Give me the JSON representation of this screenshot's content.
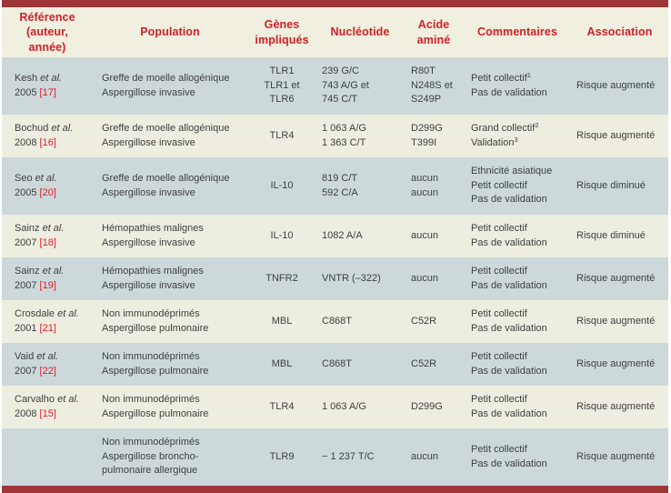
{
  "colors": {
    "bar": "#9d3539",
    "header_bg": "#f1efe0",
    "row_light": "#edeee0",
    "row_dark": "#ccd8da",
    "header_text": "#d22027",
    "ref_red": "#e41a2c",
    "body_text": "#404040"
  },
  "table": {
    "columns": [
      {
        "id": "reference",
        "label": "Référence\n(auteur,\nannée)"
      },
      {
        "id": "population",
        "label": "Population"
      },
      {
        "id": "genes",
        "label": "Gènes\nimpliqués"
      },
      {
        "id": "nucleotide",
        "label": "Nucléotide"
      },
      {
        "id": "amino_acid",
        "label": "Acide\naminé"
      },
      {
        "id": "comments",
        "label": "Commentaires"
      },
      {
        "id": "association",
        "label": "Association"
      }
    ],
    "rows": [
      {
        "reference": {
          "author": "Kesh",
          "etal": "et al.",
          "year": "2005",
          "citation": "[17]"
        },
        "population": [
          "Greffe de moelle allogénique",
          "Aspergillose invasive"
        ],
        "genes": [
          "TLR1",
          "TLR1 et",
          "TLR6"
        ],
        "nucleotide": [
          "239 G/C",
          "743 A/G et",
          "745 C/T"
        ],
        "amino_acid": [
          "R80T",
          "N248S et",
          "S249P"
        ],
        "comments": [
          {
            "text": "Petit collectif",
            "sup": "1"
          },
          {
            "text": "Pas de validation"
          }
        ],
        "association": "Risque augmenté"
      },
      {
        "reference": {
          "author": "Bochud",
          "etal": "et al.",
          "year": "2008",
          "citation": "[16]"
        },
        "population": [
          "Greffe de moelle allogénique",
          "Aspergillose invasive"
        ],
        "genes": [
          "TLR4"
        ],
        "nucleotide": [
          "1 063 A/G",
          "1 363 C/T"
        ],
        "amino_acid": [
          "D299G",
          "T399I"
        ],
        "comments": [
          {
            "text": "Grand collectif",
            "sup": "2"
          },
          {
            "text": "Validation",
            "sup": "3"
          }
        ],
        "association": "Risque augmenté"
      },
      {
        "reference": {
          "author": "Seo",
          "etal": "et al.",
          "year": "2005",
          "citation": "[20]"
        },
        "population": [
          "Greffe de moelle allogénique",
          "Aspergillose invasive"
        ],
        "genes": [
          "IL-10"
        ],
        "nucleotide": [
          "819 C/T",
          "592 C/A"
        ],
        "amino_acid": [
          "aucun",
          "aucun"
        ],
        "comments": [
          {
            "text": "Ethnicité asiatique"
          },
          {
            "text": "Petit collectif"
          },
          {
            "text": "Pas de validation"
          }
        ],
        "association": "Risque diminué"
      },
      {
        "reference": {
          "author": "Sainz",
          "etal": "et al.",
          "year": "2007",
          "citation": "[18]"
        },
        "population": [
          "Hémopathies malignes",
          "Aspergillose invasive"
        ],
        "genes": [
          "IL-10"
        ],
        "nucleotide": [
          "1082 A/A"
        ],
        "amino_acid": [
          "aucun"
        ],
        "comments": [
          {
            "text": "Petit collectif"
          },
          {
            "text": "Pas de validation"
          }
        ],
        "association": "Risque diminué"
      },
      {
        "reference": {
          "author": "Sainz",
          "etal": "et al.",
          "year": "2007",
          "citation": "[19]"
        },
        "population": [
          "Hémopathies malignes",
          "Aspergillose invasive"
        ],
        "genes": [
          "TNFR2"
        ],
        "nucleotide": [
          "VNTR (–322)"
        ],
        "amino_acid": [
          "aucun"
        ],
        "comments": [
          {
            "text": "Petit collectif"
          },
          {
            "text": "Pas de validation"
          }
        ],
        "association": "Risque augmenté"
      },
      {
        "reference": {
          "author": "Crosdale",
          "etal": "et al.",
          "year": "2001",
          "citation": "[21]"
        },
        "population": [
          "Non immunodéprimés",
          "Aspergillose pulmonaire"
        ],
        "genes": [
          "MBL"
        ],
        "nucleotide": [
          "C868T"
        ],
        "amino_acid": [
          "C52R"
        ],
        "comments": [
          {
            "text": "Petit collectif"
          },
          {
            "text": "Pas de validation"
          }
        ],
        "association": "Risque augmenté"
      },
      {
        "reference": {
          "author": "Vaid",
          "etal": "et al.",
          "year": "2007",
          "citation": "[22]"
        },
        "population": [
          "Non immunodéprimés",
          "Aspergillose pulmonaire"
        ],
        "genes": [
          "MBL"
        ],
        "nucleotide": [
          "C868T"
        ],
        "amino_acid": [
          "C52R"
        ],
        "comments": [
          {
            "text": "Petit collectif"
          },
          {
            "text": "Pas de validation"
          }
        ],
        "association": "Risque augmenté"
      },
      {
        "reference": {
          "author": "Carvalho",
          "etal": "et al.",
          "year": "2008",
          "citation": "[15]"
        },
        "population": [
          "Non immunodéprimés",
          "Aspergillose pulmonaire"
        ],
        "genes": [
          "TLR4"
        ],
        "nucleotide": [
          "1 063 A/G"
        ],
        "amino_acid": [
          "D299G"
        ],
        "comments": [
          {
            "text": "Petit collectif"
          },
          {
            "text": "Pas de validation"
          }
        ],
        "association": "Risque augmenté"
      },
      {
        "reference": null,
        "population": [
          "Non immunodéprimés",
          "Aspergillose broncho-",
          "pulmonaire allergique"
        ],
        "genes": [
          "TLR9"
        ],
        "nucleotide": [
          "− 1 237 T/C"
        ],
        "amino_acid": [
          "aucun"
        ],
        "comments": [
          {
            "text": "Petit collectif"
          },
          {
            "text": "Pas de validation"
          }
        ],
        "association": "Risque augmenté"
      }
    ]
  }
}
